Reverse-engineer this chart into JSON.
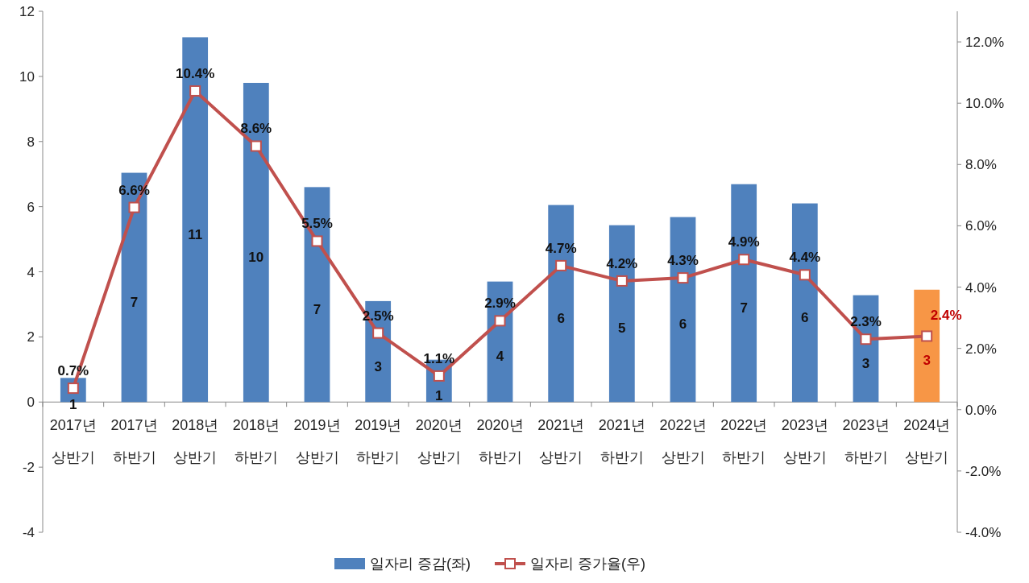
{
  "chart_data": {
    "type": "bar",
    "categories": [
      "2017년 상반기",
      "2017년 하반기",
      "2018년 상반기",
      "2018년 하반기",
      "2019년 상반기",
      "2019년 하반기",
      "2020년 상반기",
      "2020년 하반기",
      "2021년 상반기",
      "2021년 하반기",
      "2022년 상반기",
      "2022년 하반기",
      "2023년 상반기",
      "2023년 하반기",
      "2024년 상반기"
    ],
    "series": [
      {
        "name": "일자리 증감(좌)",
        "color": "#4f81bd",
        "colors": [
          "#4f81bd",
          "#4f81bd",
          "#4f81bd",
          "#4f81bd",
          "#4f81bd",
          "#4f81bd",
          "#4f81bd",
          "#4f81bd",
          "#4f81bd",
          "#4f81bd",
          "#4f81bd",
          "#4f81bd",
          "#4f81bd",
          "#4f81bd",
          "#f79646"
        ],
        "values": [
          0.74,
          7.04,
          11.2,
          9.8,
          6.6,
          3.1,
          1.3,
          3.7,
          6.05,
          5.43,
          5.68,
          6.69,
          6.1,
          3.28,
          3.45
        ],
        "value_labels": [
          "1",
          "7",
          "11",
          "10",
          "7",
          "3",
          "1",
          "4",
          "6",
          "5",
          "6",
          "7",
          "6",
          "3",
          "3"
        ]
      },
      {
        "name": "일자리 증가율(우)",
        "type": "line",
        "axis": "y2",
        "color": "#c0504d",
        "values": [
          0.7,
          6.6,
          10.4,
          8.6,
          5.5,
          2.5,
          1.1,
          2.9,
          4.7,
          4.2,
          4.3,
          4.9,
          4.4,
          2.3,
          2.4
        ],
        "value_labels": [
          "0.7%",
          "6.6%",
          "10.4%",
          "8.6%",
          "5.5%",
          "2.5%",
          "1.1%",
          "2.9%",
          "4.7%",
          "4.2%",
          "4.3%",
          "4.9%",
          "4.4%",
          "2.3%",
          "2.4%"
        ]
      }
    ],
    "marker": "square",
    "ylim": [
      -4,
      12
    ],
    "yticks": [
      -4,
      -2,
      0,
      2,
      4,
      6,
      8,
      10,
      12
    ],
    "y2lim": [
      -4,
      13
    ],
    "y2ticks": [
      {
        "value": -4,
        "label": "-4.0%"
      },
      {
        "value": -2,
        "label": "-2.0%"
      },
      {
        "value": 0,
        "label": "0.0%"
      },
      {
        "value": 2,
        "label": "2.0%"
      },
      {
        "value": 4,
        "label": "4.0%"
      },
      {
        "value": 6,
        "label": "6.0%"
      },
      {
        "value": 8,
        "label": "8.0%"
      },
      {
        "value": 10,
        "label": "10.0%"
      },
      {
        "value": 12,
        "label": "12.0%"
      }
    ],
    "legend": "bottom"
  }
}
